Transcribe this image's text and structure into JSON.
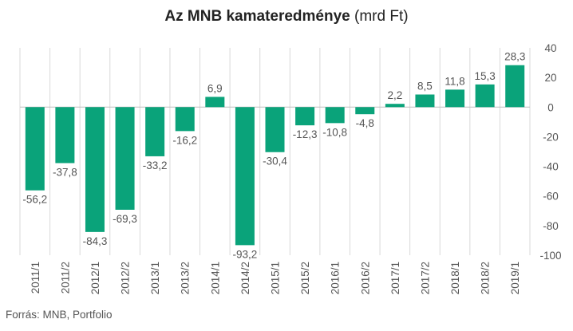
{
  "title": {
    "main": "Az MNB kamateredménye",
    "unit": "(mrd Ft)"
  },
  "source": "Forrás: MNB, Portfolio",
  "colors": {
    "bar": "#0aa37a",
    "grid": "#d9d9d9",
    "text": "#555555"
  },
  "chart_data": {
    "type": "bar",
    "categories": [
      "2011/1",
      "2011/2",
      "2012/1",
      "2012/2",
      "2013/1",
      "2013/2",
      "2014/1",
      "2014/2",
      "2015/1",
      "2015/2",
      "2016/1",
      "2016/2",
      "2017/1",
      "2017/2",
      "2018/1",
      "2018/2",
      "2019/1"
    ],
    "values": [
      -56.2,
      -37.8,
      -84.3,
      -69.3,
      -33.2,
      -16.2,
      6.9,
      -93.2,
      -30.4,
      -12.3,
      -10.8,
      -4.8,
      2.2,
      8.5,
      11.8,
      15.3,
      28.3
    ],
    "value_labels": [
      "-56,2",
      "-37,8",
      "-84,3",
      "-69,3",
      "-33,2",
      "-16,2",
      "6,9",
      "-93,2",
      "-30,4",
      "-12,3",
      "-10,8",
      "-4,8",
      "2,2",
      "8,5",
      "11,8",
      "15,3",
      "28,3"
    ],
    "ylim": [
      -100,
      40
    ],
    "yticks": [
      40,
      20,
      0,
      -20,
      -40,
      -60,
      -80,
      -100
    ],
    "ytick_labels": [
      "40",
      "20",
      "0",
      "-20",
      "-40",
      "-60",
      "-80",
      "-100"
    ],
    "y_axis_side": "right",
    "grid": "vertical",
    "legend": "none"
  }
}
